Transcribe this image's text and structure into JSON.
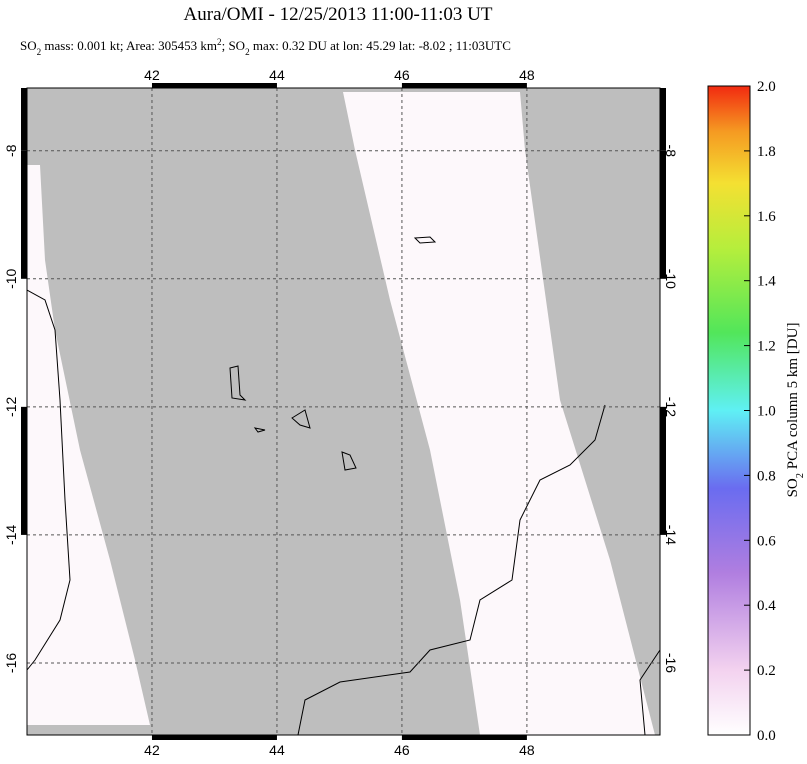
{
  "title": "Aura/OMI - 12/25/2013 11:00-11:03 UT",
  "subtitle": [
    "SO",
    "2",
    " mass: 0.001 kt; Area: 305453 km",
    "2",
    "; SO",
    "2",
    " max: 0.32 DU at lon: 45.29 lat: -8.02 ; 11:03UTC"
  ],
  "map": {
    "lonlim": [
      40,
      50.13
    ],
    "latlim": [
      -17.125,
      -7.02
    ],
    "lon_ticks": [
      42,
      44,
      46,
      48
    ],
    "lat_ticks": [
      -8,
      -10,
      -12,
      -14,
      -16
    ]
  },
  "colorbar": {
    "label": [
      "SO",
      "2",
      " PCA column 5 km [DU]"
    ],
    "lim": [
      0,
      2
    ],
    "ticks": [
      {
        "value": 0,
        "label": "0.0"
      },
      {
        "value": 0.2,
        "label": "0.2"
      },
      {
        "value": 0.4,
        "label": "0.4"
      },
      {
        "value": 0.6,
        "label": "0.6"
      },
      {
        "value": 0.8,
        "label": "0.8"
      },
      {
        "value": 1,
        "label": "1.0"
      },
      {
        "value": 1.2,
        "label": "1.2"
      },
      {
        "value": 1.4,
        "label": "1.4"
      },
      {
        "value": 1.6,
        "label": "1.6"
      },
      {
        "value": 1.8,
        "label": "1.8"
      },
      {
        "value": 2,
        "label": "2.0"
      }
    ]
  }
}
